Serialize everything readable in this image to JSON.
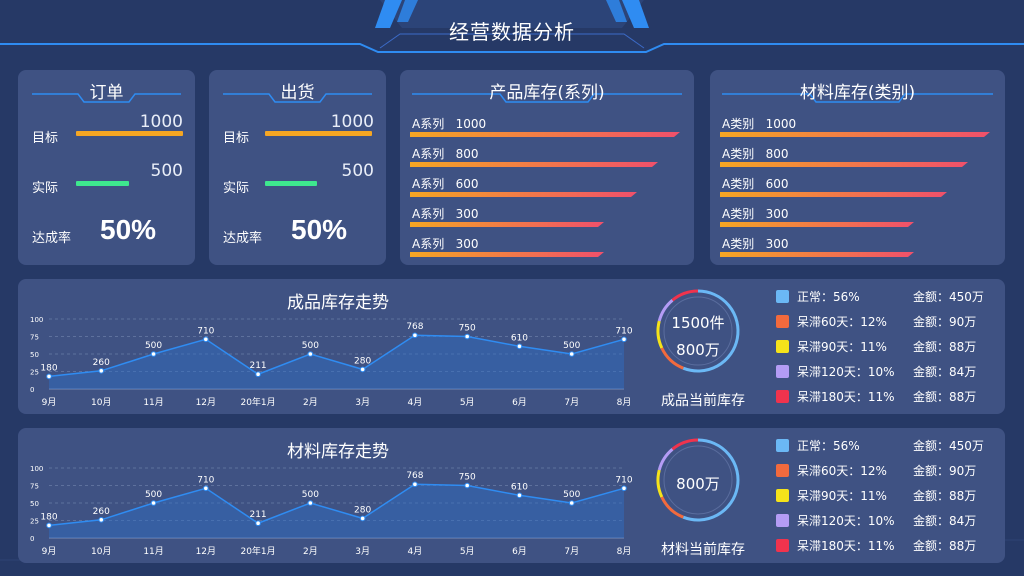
{
  "header": {
    "title": "经营数据分析"
  },
  "orders": {
    "title": "订单",
    "target_label": "目标",
    "target_value": "1000",
    "actual_label": "实际",
    "actual_value": "500",
    "rate_label": "达成率",
    "rate_value": "50%",
    "actual_fraction": 0.5
  },
  "shipments": {
    "title": "出货",
    "target_label": "目标",
    "target_value": "1000",
    "actual_label": "实际",
    "actual_value": "500",
    "rate_label": "达成率",
    "rate_value": "50%",
    "actual_fraction": 0.5
  },
  "product_stock": {
    "title": "产品库存(系列)",
    "items": [
      {
        "label": "A系列   1000",
        "value": 1000
      },
      {
        "label": "A系列   800",
        "value": 800
      },
      {
        "label": "A系列   600",
        "value": 600
      },
      {
        "label": "A系列   300",
        "value": 300
      },
      {
        "label": "A系列   300",
        "value": 300
      }
    ]
  },
  "material_stock": {
    "title": "材料库存(类别)",
    "items": [
      {
        "label": "A类别   1000",
        "value": 1000
      },
      {
        "label": "A类别   800",
        "value": 800
      },
      {
        "label": "A类别   600",
        "value": 600
      },
      {
        "label": "A类别   300",
        "value": 300
      },
      {
        "label": "A类别   300",
        "value": 300
      }
    ]
  },
  "product_trend": {
    "title": "成品库存走势",
    "donut_line1": "1500件",
    "donut_line2": "800万",
    "donut_caption": "成品当前库存",
    "legend": [
      {
        "label": "正常：56%",
        "amount": "金额：450万",
        "color": "#6bb8f5"
      },
      {
        "label": "呆滞60天：12%",
        "amount": "金额：90万",
        "color": "#f26a3d"
      },
      {
        "label": "呆滞90天：11%",
        "amount": "金额：88万",
        "color": "#f5e31a"
      },
      {
        "label": "呆滞120天：10%",
        "amount": "金额：84万",
        "color": "#b49cf5"
      },
      {
        "label": "呆滞180天：11%",
        "amount": "金额：88万",
        "color": "#f0334d"
      }
    ]
  },
  "material_trend": {
    "title": "材料库存走势",
    "donut_line1": "800万",
    "donut_caption": "材料当前库存",
    "legend": [
      {
        "label": "正常：56%",
        "amount": "金额：450万",
        "color": "#6bb8f5"
      },
      {
        "label": "呆滞60天：12%",
        "amount": "金额：90万",
        "color": "#f26a3d"
      },
      {
        "label": "呆滞90天：11%",
        "amount": "金额：88万",
        "color": "#f5e31a"
      },
      {
        "label": "呆滞120天：10%",
        "amount": "金额：84万",
        "color": "#b49cf5"
      },
      {
        "label": "呆滞180天：11%",
        "amount": "金额：88万",
        "color": "#f0334d"
      }
    ]
  },
  "chart_data": [
    {
      "type": "area",
      "title": "成品库存走势",
      "categories": [
        "9月",
        "10月",
        "11月",
        "12月",
        "20年1月",
        "2月",
        "3月",
        "4月",
        "5月",
        "6月",
        "7月",
        "8月"
      ],
      "values": [
        180,
        260,
        500,
        710,
        211,
        500,
        280,
        768,
        750,
        610,
        500,
        710
      ],
      "value_labels": [
        "180",
        "260",
        "500",
        "710",
        "211",
        "500",
        "280",
        "768",
        "750",
        "610",
        "500",
        "710"
      ],
      "y_ticks": [
        "0",
        "25",
        "50",
        "75",
        "100"
      ],
      "ylim": [
        0,
        100
      ],
      "grid": true,
      "color": "#2f8cf2"
    },
    {
      "type": "area",
      "title": "材料库存走势",
      "categories": [
        "9月",
        "10月",
        "11月",
        "12月",
        "20年1月",
        "2月",
        "3月",
        "4月",
        "5月",
        "6月",
        "7月",
        "8月"
      ],
      "values": [
        180,
        260,
        500,
        710,
        211,
        500,
        280,
        768,
        750,
        610,
        500,
        710
      ],
      "value_labels": [
        "180",
        "260",
        "500",
        "710",
        "211",
        "500",
        "280",
        "768",
        "750",
        "610",
        "500",
        "710"
      ],
      "y_ticks": [
        "0",
        "25",
        "50",
        "75",
        "100"
      ],
      "ylim": [
        0,
        100
      ],
      "grid": true,
      "color": "#2f8cf2"
    }
  ]
}
